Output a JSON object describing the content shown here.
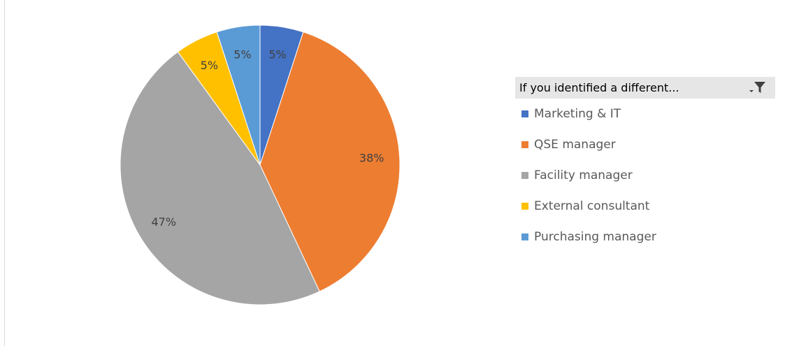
{
  "chart_data": {
    "type": "pie",
    "title": "",
    "categories": [
      "Marketing & IT",
      "QSE manager",
      "Facility manager",
      "External consultant",
      "Purchasing manager"
    ],
    "values": [
      5,
      38,
      47,
      5,
      5
    ],
    "data_labels": [
      "5%",
      "38%",
      "47%",
      "5%",
      "5%"
    ],
    "colors": [
      "#4472c4",
      "#ed7d31",
      "#a5a5a5",
      "#ffc000",
      "#5b9bd5"
    ],
    "start_angle_deg": 0,
    "direction": "clockwise",
    "legend_position": "right"
  },
  "legend": {
    "header": "If you identified a different...",
    "filter_icon": "filter-dropdown-icon",
    "items": [
      {
        "label": "Marketing & IT",
        "color": "#4472c4"
      },
      {
        "label": "QSE manager",
        "color": "#ed7d31"
      },
      {
        "label": "Facility manager",
        "color": "#a5a5a5"
      },
      {
        "label": "External consultant",
        "color": "#ffc000"
      },
      {
        "label": "Purchasing manager",
        "color": "#5b9bd5"
      }
    ]
  }
}
